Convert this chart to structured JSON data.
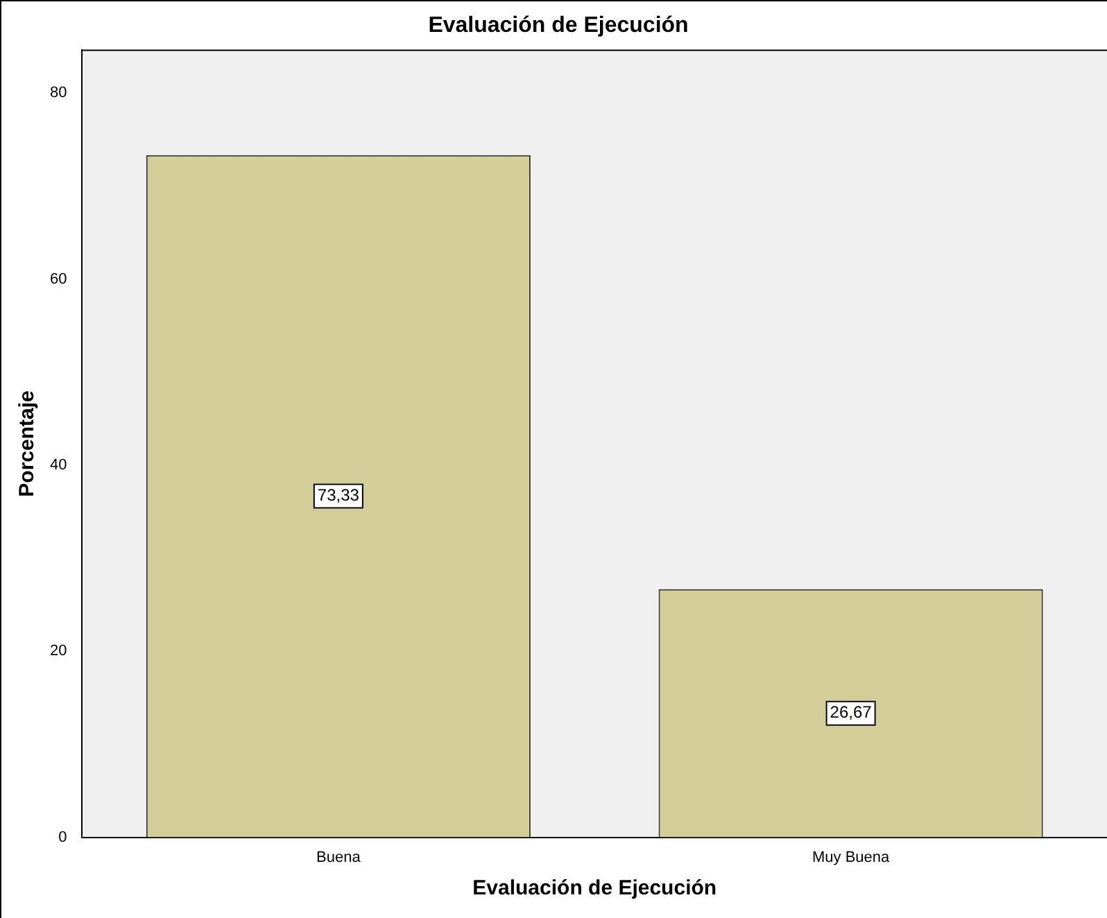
{
  "chart_data": {
    "type": "bar",
    "title": "Evaluación de Ejecución",
    "xlabel": "Evaluación de Ejecución",
    "ylabel": "Porcentaje",
    "categories": [
      "Buena",
      "Muy Buena"
    ],
    "values": [
      73.33,
      26.67
    ],
    "color": "#d3ce97",
    "value_labels": [
      "73,33",
      "26,67"
    ],
    "ylim": [
      0,
      84.6
    ],
    "yticks": [
      0,
      20,
      40,
      60,
      80
    ],
    "grid": false,
    "legend": false
  }
}
